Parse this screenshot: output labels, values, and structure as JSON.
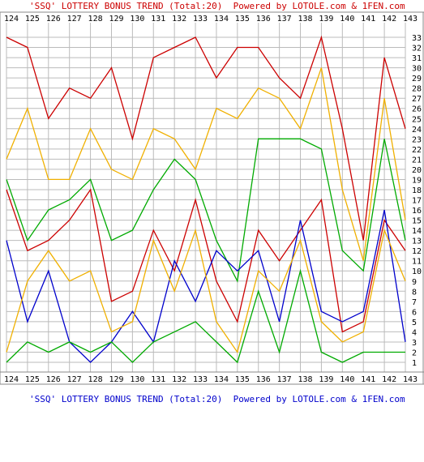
{
  "header_text": "'SSQ' LOTTERY BONUS TREND (Total:20)  Powered by LOTOLE.com & 1FEN.com",
  "footer_text": "'SSQ' LOTTERY BONUS TREND (Total:20)  Powered by LOTOLE.com & 1FEN.com",
  "chart_data": {
    "type": "line",
    "title": "'SSQ' LOTTERY BONUS TREND (Total:20)  Powered by LOTOLE.com & 1FEN.com",
    "x": [
      "124",
      "125",
      "126",
      "127",
      "128",
      "129",
      "130",
      "131",
      "132",
      "133",
      "134",
      "135",
      "136",
      "137",
      "138",
      "139",
      "140",
      "141",
      "142",
      "143"
    ],
    "y_ticks": [
      1,
      2,
      3,
      4,
      5,
      6,
      7,
      8,
      9,
      10,
      11,
      12,
      13,
      14,
      15,
      16,
      17,
      18,
      19,
      20,
      21,
      22,
      23,
      24,
      25,
      26,
      27,
      28,
      29,
      30,
      31,
      32,
      33
    ],
    "ylim": [
      1,
      33
    ],
    "grid": true,
    "colors": {
      "background": "#ffffff",
      "grid": "#bbbbbb",
      "title": "#cc0000",
      "footer": "#0000cc"
    },
    "series": [
      {
        "color": "#cc0000",
        "values": [
          33,
          32,
          25,
          28,
          27,
          30,
          23,
          31,
          32,
          33,
          29,
          32,
          32,
          29,
          27,
          33,
          24,
          13,
          31,
          24
        ]
      },
      {
        "color": "#f0b000",
        "values": [
          21,
          26,
          19,
          19,
          24,
          20,
          19,
          24,
          23,
          20,
          26,
          25,
          28,
          27,
          24,
          30,
          18,
          11,
          27,
          15
        ]
      },
      {
        "color": "#00aa00",
        "values": [
          19,
          13,
          16,
          17,
          19,
          13,
          14,
          18,
          21,
          19,
          13,
          9,
          23,
          23,
          23,
          22,
          12,
          10,
          23,
          13
        ]
      },
      {
        "color": "#cc0000",
        "values": [
          18,
          12,
          13,
          15,
          18,
          7,
          8,
          14,
          10,
          17,
          9,
          5,
          14,
          11,
          14,
          17,
          4,
          5,
          15,
          12
        ]
      },
      {
        "color": "#0000cc",
        "values": [
          13,
          5,
          10,
          3,
          1,
          3,
          6,
          3,
          11,
          7,
          12,
          10,
          12,
          5,
          15,
          6,
          5,
          6,
          16,
          3
        ]
      },
      {
        "color": "#f0b000",
        "values": [
          2,
          9,
          12,
          9,
          10,
          4,
          5,
          13,
          8,
          14,
          5,
          2,
          10,
          8,
          13,
          5,
          3,
          4,
          14,
          9
        ]
      },
      {
        "color": "#00aa00",
        "values": [
          1,
          3,
          2,
          3,
          2,
          3,
          1,
          3,
          4,
          5,
          3,
          1,
          8,
          2,
          10,
          2,
          1,
          2,
          2,
          2
        ]
      }
    ]
  }
}
